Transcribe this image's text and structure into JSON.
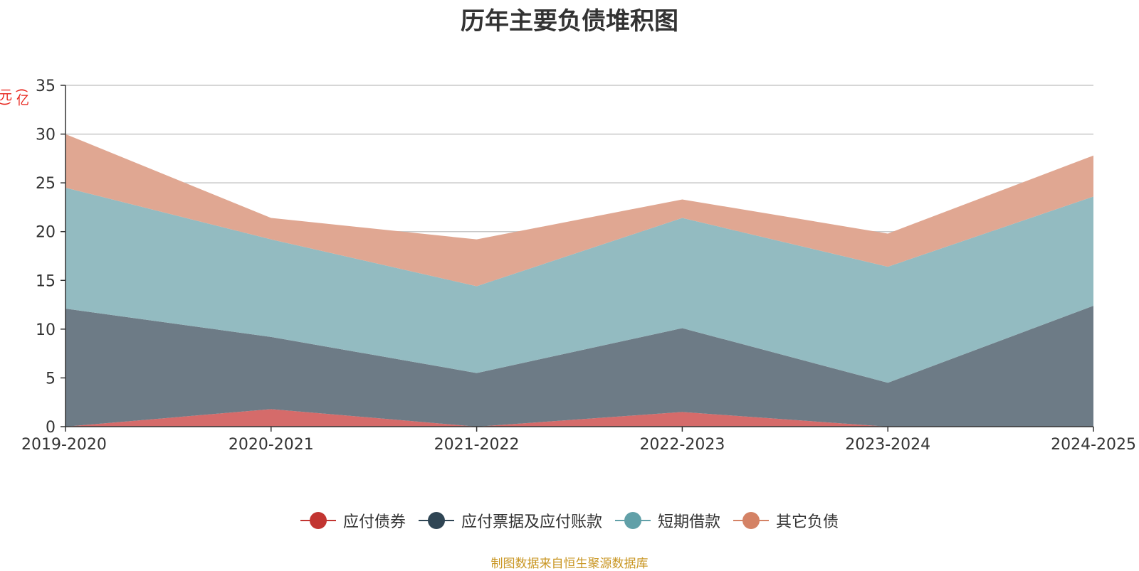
{
  "unit_label": "(亿元)",
  "source_note": "制图数据来自恒生聚源数据库",
  "chart_data": {
    "type": "area",
    "stacked": true,
    "title": "历年主要负债堆积图",
    "ylabel": "(亿元)",
    "xlabel": "",
    "categories": [
      "2019-2020",
      "2020-2021",
      "2021-2022",
      "2022-2023",
      "2023-2024",
      "2024-2025"
    ],
    "ylim": [
      0,
      35
    ],
    "yticks": [
      0,
      5,
      10,
      15,
      20,
      25,
      30,
      35
    ],
    "grid": true,
    "legend_position": "bottom",
    "series": [
      {
        "name": "应付债券",
        "color": "#c23531",
        "fill": "#d56b6a",
        "values": [
          0,
          1.8,
          0,
          1.5,
          0,
          0
        ]
      },
      {
        "name": "应付票据及应付账款",
        "color": "#2f4554",
        "fill": "#6d7b86",
        "values": [
          12.1,
          7.4,
          5.5,
          8.6,
          4.5,
          12.4
        ]
      },
      {
        "name": "短期借款",
        "color": "#61a0a8",
        "fill": "#93bbc1",
        "values": [
          12.4,
          10.0,
          8.9,
          11.3,
          11.9,
          11.2
        ]
      },
      {
        "name": "其它负债",
        "color": "#d48265",
        "fill": "#e0a792",
        "values": [
          5.5,
          2.2,
          4.8,
          1.9,
          3.4,
          4.2
        ]
      }
    ]
  }
}
